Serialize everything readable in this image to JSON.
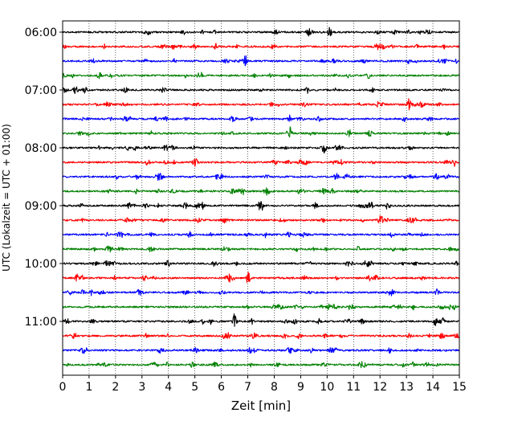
{
  "chart_data": {
    "type": "line",
    "title": "",
    "xlabel": "Zeit  [min]",
    "ylabel": "UTC (Lokalzeit = UTC + 01:00)",
    "xlim": [
      0,
      15
    ],
    "x_ticks": [
      0,
      1,
      2,
      3,
      4,
      5,
      6,
      7,
      8,
      9,
      10,
      11,
      12,
      13,
      14,
      15
    ],
    "x_tick_labels": [
      "0",
      "1",
      "2",
      "3",
      "4",
      "5",
      "6",
      "7",
      "8",
      "9",
      "10",
      "11",
      "12",
      "13",
      "14",
      "15"
    ],
    "y_tick_labels": [
      "06:00",
      "07:00",
      "08:00",
      "09:00",
      "10:00",
      "11:00"
    ],
    "y_tick_trace_index": [
      0,
      4,
      8,
      12,
      16,
      20
    ],
    "grid": {
      "x": true,
      "style": "dotted",
      "color": "#000000"
    },
    "trace_colors": [
      "#000000",
      "#ff0000",
      "#0000ff",
      "#008000"
    ],
    "trace_start_times": [
      "06:00",
      "06:15",
      "06:30",
      "06:45",
      "07:00",
      "07:15",
      "07:30",
      "07:45",
      "08:00",
      "08:15",
      "08:30",
      "08:45",
      "09:00",
      "09:15",
      "09:30",
      "09:45",
      "10:00",
      "10:15",
      "10:30",
      "10:45",
      "11:00",
      "11:15",
      "11:30",
      "11:45"
    ],
    "notable_events": [
      {
        "trace": "06:00",
        "minute": 10.1,
        "amplitude": 0.9
      },
      {
        "trace": "06:15",
        "minute": 5.8,
        "amplitude": 0.6
      },
      {
        "trace": "06:30",
        "minute": 6.9,
        "amplitude": 1.4
      },
      {
        "trace": "06:30",
        "minute": 13.1,
        "amplitude": 0.6
      },
      {
        "trace": "07:00",
        "minute": 11.7,
        "amplitude": 0.5
      },
      {
        "trace": "07:15",
        "minute": 13.1,
        "amplitude": 1.3
      },
      {
        "trace": "07:30",
        "minute": 8.6,
        "amplitude": 0.7
      },
      {
        "trace": "07:45",
        "minute": 8.6,
        "amplitude": 0.8
      },
      {
        "trace": "08:00",
        "minute": 9.9,
        "amplitude": 0.6
      },
      {
        "trace": "08:00",
        "minute": 3.9,
        "amplitude": 0.5
      },
      {
        "trace": "08:15",
        "minute": 14.8,
        "amplitude": 0.8
      },
      {
        "trace": "08:45",
        "minute": 6.8,
        "amplitude": 0.8
      },
      {
        "trace": "09:00",
        "minute": 5.3,
        "amplitude": 0.8
      },
      {
        "trace": "09:00",
        "minute": 12.3,
        "amplitude": 0.9
      },
      {
        "trace": "09:15",
        "minute": 13.3,
        "amplitude": 0.6
      },
      {
        "trace": "10:00",
        "minute": 9.3,
        "amplitude": 0.7
      },
      {
        "trace": "10:15",
        "minute": 3.1,
        "amplitude": 0.8
      },
      {
        "trace": "10:15",
        "minute": 7.0,
        "amplitude": 0.8
      },
      {
        "trace": "11:00",
        "minute": 6.5,
        "amplitude": 1.5
      },
      {
        "trace": "11:30",
        "minute": 10.3,
        "amplitude": 0.5
      }
    ]
  }
}
